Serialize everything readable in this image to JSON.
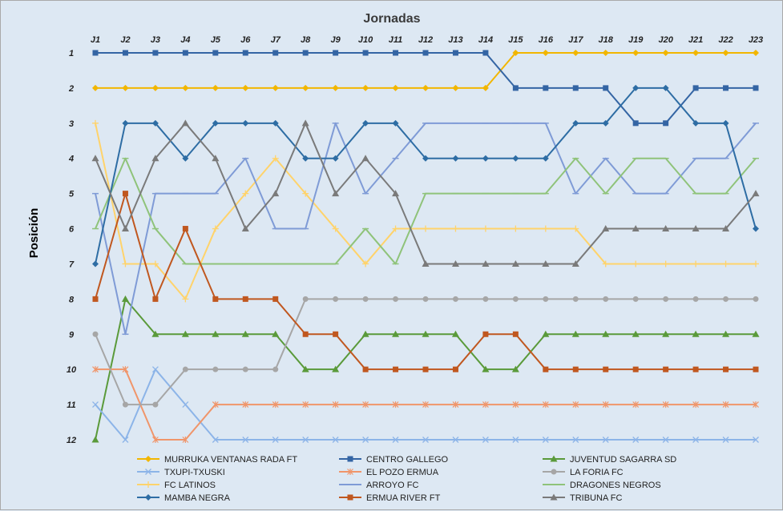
{
  "chart_data": {
    "type": "line",
    "title": "Jornadas",
    "xlabel": "Jornadas",
    "ylabel": "Posición",
    "categories": [
      "J1",
      "J2",
      "J3",
      "J4",
      "J5",
      "J6",
      "J7",
      "J8",
      "J9",
      "J10",
      "J11",
      "J12",
      "J13",
      "J14",
      "J15",
      "J16",
      "J17",
      "J18",
      "J19",
      "J20",
      "J21",
      "J22",
      "J23"
    ],
    "y_ticks": [
      "1",
      "2",
      "3",
      "4",
      "5",
      "6",
      "7",
      "8",
      "9",
      "10",
      "11",
      "12"
    ],
    "ylim": [
      1,
      12
    ],
    "y_inverted": true,
    "grid": false,
    "legend_position": "bottom",
    "series": [
      {
        "name": "MURRUKA VENTANAS RADA FT",
        "color": "#f2b600",
        "marker": "diamond",
        "values": [
          2,
          2,
          2,
          2,
          2,
          2,
          2,
          2,
          2,
          2,
          2,
          2,
          2,
          2,
          1,
          1,
          1,
          1,
          1,
          1,
          1,
          1,
          1
        ]
      },
      {
        "name": "CENTRO GALLEGO",
        "color": "#3465a4",
        "marker": "square",
        "values": [
          1,
          1,
          1,
          1,
          1,
          1,
          1,
          1,
          1,
          1,
          1,
          1,
          1,
          1,
          2,
          2,
          2,
          2,
          3,
          3,
          2,
          2,
          2
        ]
      },
      {
        "name": "JUVENTUD SAGARRA SD",
        "color": "#5a9a3a",
        "marker": "triangle",
        "values": [
          12,
          8,
          9,
          9,
          9,
          9,
          9,
          10,
          10,
          9,
          9,
          9,
          9,
          10,
          10,
          9,
          9,
          9,
          9,
          9,
          9,
          9,
          9
        ]
      },
      {
        "name": "TXUPI-TXUSKI",
        "color": "#8cb4e8",
        "marker": "x",
        "values": [
          11,
          12,
          10,
          11,
          12,
          12,
          12,
          12,
          12,
          12,
          12,
          12,
          12,
          12,
          12,
          12,
          12,
          12,
          12,
          12,
          12,
          12,
          12
        ]
      },
      {
        "name": "EL POZO ERMUA",
        "color": "#f0956a",
        "marker": "star",
        "values": [
          10,
          10,
          12,
          12,
          11,
          11,
          11,
          11,
          11,
          11,
          11,
          11,
          11,
          11,
          11,
          11,
          11,
          11,
          11,
          11,
          11,
          11,
          11
        ]
      },
      {
        "name": "LA FORIA FC",
        "color": "#a6a6a6",
        "marker": "circle",
        "values": [
          9,
          11,
          11,
          10,
          10,
          10,
          10,
          8,
          8,
          8,
          8,
          8,
          8,
          8,
          8,
          8,
          8,
          8,
          8,
          8,
          8,
          8,
          8
        ]
      },
      {
        "name": "FC LATINOS",
        "color": "#ffd36b",
        "marker": "plus",
        "values": [
          3,
          7,
          7,
          8,
          6,
          5,
          4,
          5,
          6,
          7,
          6,
          6,
          6,
          6,
          6,
          6,
          6,
          7,
          7,
          7,
          7,
          7,
          7
        ]
      },
      {
        "name": "ARROYO FC",
        "color": "#7f9bd6",
        "marker": "line",
        "values": [
          5,
          9,
          5,
          5,
          5,
          4,
          6,
          6,
          3,
          5,
          4,
          3,
          3,
          3,
          3,
          3,
          5,
          4,
          5,
          5,
          4,
          4,
          3
        ]
      },
      {
        "name": "DRAGONES NEGROS",
        "color": "#8fc37a",
        "marker": "line",
        "values": [
          6,
          4,
          6,
          7,
          7,
          7,
          7,
          7,
          7,
          6,
          7,
          5,
          5,
          5,
          5,
          5,
          4,
          5,
          4,
          4,
          5,
          5,
          4
        ]
      },
      {
        "name": "MAMBA NEGRA",
        "color": "#2e6da4",
        "marker": "diamond",
        "values": [
          7,
          3,
          3,
          4,
          3,
          3,
          3,
          4,
          4,
          3,
          3,
          4,
          4,
          4,
          4,
          4,
          3,
          3,
          2,
          2,
          3,
          3,
          6
        ]
      },
      {
        "name": "ERMUA RIVER FT",
        "color": "#c0571f",
        "marker": "square",
        "values": [
          8,
          5,
          8,
          6,
          8,
          8,
          8,
          9,
          9,
          10,
          10,
          10,
          10,
          9,
          9,
          10,
          10,
          10,
          10,
          10,
          10,
          10,
          10
        ]
      },
      {
        "name": "TRIBUNA FC",
        "color": "#7a7a7a",
        "marker": "triangle",
        "values": [
          4,
          6,
          4,
          3,
          4,
          6,
          5,
          3,
          5,
          4,
          5,
          7,
          7,
          7,
          7,
          7,
          7,
          6,
          6,
          6,
          6,
          6,
          5
        ]
      }
    ]
  }
}
